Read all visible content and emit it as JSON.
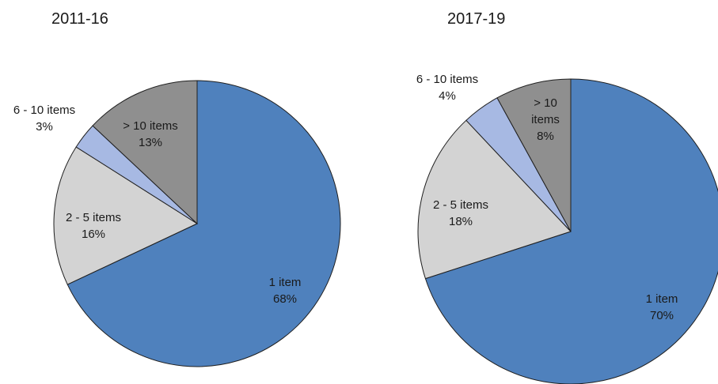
{
  "chart_data": [
    {
      "type": "pie",
      "title": "2011-16",
      "slices": [
        {
          "label": "1 item",
          "percent_label": "68%",
          "value": 68,
          "color": "#4f81bd"
        },
        {
          "label": "2 - 5 items",
          "percent_label": "16%",
          "value": 16,
          "color": "#d3d3d3"
        },
        {
          "label": "6 - 10 items",
          "percent_label": "3%",
          "value": 3,
          "color": "#a7b9e3"
        },
        {
          "label": "> 10 items",
          "percent_label": "13%",
          "value": 13,
          "color": "#8f8f8f"
        }
      ]
    },
    {
      "type": "pie",
      "title": "2017-19",
      "slices": [
        {
          "label": "1 item",
          "percent_label": "70%",
          "value": 70,
          "color": "#4f81bd"
        },
        {
          "label": "2 - 5 items",
          "percent_label": "18%",
          "value": 18,
          "color": "#d3d3d3"
        },
        {
          "label": "6 - 10 items",
          "percent_label": "4%",
          "value": 4,
          "color": "#a7b9e3"
        },
        {
          "label": "> 10 items",
          "percent_label": "8%",
          "value": 8,
          "color": "#8f8f8f"
        }
      ]
    }
  ]
}
